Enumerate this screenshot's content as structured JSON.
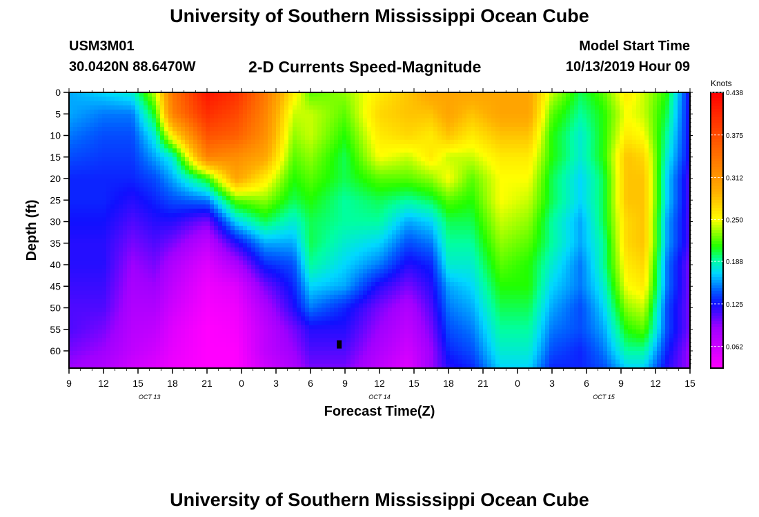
{
  "page": {
    "title_top": "University of Southern Mississippi Ocean Cube",
    "title_bottom": "University of Southern Mississippi Ocean Cube",
    "station_id": "USM3M01",
    "station_coords": "30.0420N 88.6470W",
    "subtitle": "2-D Currents Speed-Magnitude",
    "model_start_label": "Model Start Time",
    "model_start_value": "10/13/2019 Hour 09"
  },
  "chart_data": {
    "type": "heatmap",
    "title": "2-D Currents Speed-Magnitude",
    "xlabel": "Forecast Time(Z)",
    "ylabel": "Depth (ft)",
    "x_tick_labels": [
      "9",
      "12",
      "15",
      "18",
      "21",
      "0",
      "3",
      "6",
      "9",
      "12",
      "15",
      "18",
      "21",
      "0",
      "3",
      "6",
      "9",
      "12",
      "15"
    ],
    "x_hours": [
      0,
      3,
      6,
      9,
      12,
      15,
      18,
      21,
      24,
      27,
      30,
      33,
      36,
      39,
      42,
      45,
      48,
      51,
      54
    ],
    "x_range_hours": [
      0,
      54
    ],
    "date_labels": [
      {
        "text": "OCT 13",
        "hour": 7
      },
      {
        "text": "OCT 14",
        "hour": 27
      },
      {
        "text": "OCT 15",
        "hour": 46.5
      }
    ],
    "y_ticks": [
      0,
      5,
      10,
      15,
      20,
      25,
      30,
      35,
      40,
      45,
      50,
      55,
      60
    ],
    "y_range_ft": [
      0,
      64
    ],
    "colorbar": {
      "title": "Knots",
      "tick_labels": [
        "0.438",
        "0.375",
        "0.312",
        "0.250",
        "0.188",
        "0.125",
        "0.062"
      ],
      "tick_values": [
        0.438,
        0.375,
        0.312,
        0.25,
        0.188,
        0.125,
        0.062
      ],
      "range": [
        0.03,
        0.438
      ],
      "color_stops": [
        {
          "v": 0.03,
          "c": "#ff00ff"
        },
        {
          "v": 0.09,
          "c": "#a000ff"
        },
        {
          "v": 0.125,
          "c": "#1010ff"
        },
        {
          "v": 0.145,
          "c": "#0060ff"
        },
        {
          "v": 0.17,
          "c": "#00d8ff"
        },
        {
          "v": 0.19,
          "c": "#00ffa0"
        },
        {
          "v": 0.21,
          "c": "#20ff00"
        },
        {
          "v": 0.25,
          "c": "#ffff00"
        },
        {
          "v": 0.29,
          "c": "#ffb000"
        },
        {
          "v": 0.35,
          "c": "#ff6a00"
        },
        {
          "v": 0.438,
          "c": "#ff0000"
        }
      ]
    },
    "marker": {
      "hour": 23.5,
      "depth_ft": 58.5
    },
    "profiles": [
      {
        "hour": 0,
        "speed": [
          0.16,
          0.16,
          0.15,
          0.14,
          0.13,
          0.13,
          0.125,
          0.12,
          0.12,
          0.115,
          0.11,
          0.11,
          0.1,
          0.09
        ]
      },
      {
        "hour": 3,
        "speed": [
          0.17,
          0.15,
          0.14,
          0.135,
          0.13,
          0.13,
          0.125,
          0.12,
          0.12,
          0.115,
          0.11,
          0.1,
          0.09,
          0.08
        ]
      },
      {
        "hour": 5.5,
        "speed": [
          0.18,
          0.15,
          0.14,
          0.135,
          0.13,
          0.12,
          0.11,
          0.1,
          0.09,
          0.085,
          0.08,
          0.075,
          0.07,
          0.06
        ]
      },
      {
        "hour": 7.5,
        "speed": [
          0.24,
          0.21,
          0.18,
          0.16,
          0.14,
          0.13,
          0.12,
          0.11,
          0.1,
          0.09,
          0.08,
          0.07,
          0.06,
          0.05
        ]
      },
      {
        "hour": 9,
        "speed": [
          0.34,
          0.33,
          0.26,
          0.18,
          0.16,
          0.14,
          0.12,
          0.1,
          0.08,
          0.07,
          0.06,
          0.05,
          0.045,
          0.04
        ]
      },
      {
        "hour": 12,
        "speed": [
          0.42,
          0.4,
          0.37,
          0.33,
          0.21,
          0.15,
          0.1,
          0.07,
          0.05,
          0.04,
          0.035,
          0.03,
          0.03,
          0.03
        ]
      },
      {
        "hour": 14.5,
        "speed": [
          0.4,
          0.38,
          0.36,
          0.32,
          0.3,
          0.22,
          0.17,
          0.12,
          0.08,
          0.05,
          0.04,
          0.035,
          0.03,
          0.03
        ]
      },
      {
        "hour": 17,
        "speed": [
          0.34,
          0.33,
          0.32,
          0.3,
          0.26,
          0.23,
          0.2,
          0.16,
          0.13,
          0.1,
          0.08,
          0.07,
          0.07,
          0.06
        ]
      },
      {
        "hour": 19.5,
        "speed": [
          0.26,
          0.24,
          0.23,
          0.22,
          0.21,
          0.2,
          0.18,
          0.16,
          0.14,
          0.13,
          0.12,
          0.1,
          0.09,
          0.08
        ]
      },
      {
        "hour": 21,
        "speed": [
          0.22,
          0.24,
          0.24,
          0.23,
          0.22,
          0.21,
          0.2,
          0.2,
          0.19,
          0.17,
          0.15,
          0.12,
          0.11,
          0.1
        ]
      },
      {
        "hour": 24,
        "speed": [
          0.23,
          0.22,
          0.21,
          0.2,
          0.2,
          0.19,
          0.19,
          0.18,
          0.17,
          0.16,
          0.13,
          0.12,
          0.11,
          0.1
        ]
      },
      {
        "hour": 27,
        "speed": [
          0.26,
          0.27,
          0.26,
          0.25,
          0.22,
          0.2,
          0.19,
          0.17,
          0.15,
          0.12,
          0.1,
          0.09,
          0.08,
          0.07
        ]
      },
      {
        "hour": 29.5,
        "speed": [
          0.28,
          0.28,
          0.27,
          0.24,
          0.22,
          0.19,
          0.16,
          0.14,
          0.12,
          0.1,
          0.08,
          0.07,
          0.06,
          0.05
        ]
      },
      {
        "hour": 31.5,
        "speed": [
          0.3,
          0.28,
          0.26,
          0.26,
          0.23,
          0.2,
          0.17,
          0.15,
          0.13,
          0.12,
          0.11,
          0.1,
          0.09,
          0.09
        ]
      },
      {
        "hour": 33,
        "speed": [
          0.3,
          0.3,
          0.28,
          0.24,
          0.25,
          0.22,
          0.2,
          0.19,
          0.18,
          0.16,
          0.15,
          0.14,
          0.13,
          0.12
        ]
      },
      {
        "hour": 35,
        "speed": [
          0.3,
          0.28,
          0.26,
          0.24,
          0.22,
          0.21,
          0.2,
          0.19,
          0.18,
          0.17,
          0.16,
          0.15,
          0.14,
          0.13
        ]
      },
      {
        "hour": 37.5,
        "speed": [
          0.3,
          0.3,
          0.28,
          0.26,
          0.25,
          0.25,
          0.24,
          0.23,
          0.22,
          0.21,
          0.2,
          0.19,
          0.18,
          0.17
        ]
      },
      {
        "hour": 40,
        "speed": [
          0.3,
          0.3,
          0.28,
          0.26,
          0.25,
          0.24,
          0.23,
          0.22,
          0.21,
          0.21,
          0.2,
          0.19,
          0.18,
          0.17
        ]
      },
      {
        "hour": 42,
        "speed": [
          0.24,
          0.22,
          0.21,
          0.21,
          0.2,
          0.2,
          0.19,
          0.19,
          0.18,
          0.17,
          0.16,
          0.15,
          0.14,
          0.13
        ]
      },
      {
        "hour": 44.5,
        "speed": [
          0.2,
          0.19,
          0.18,
          0.18,
          0.17,
          0.17,
          0.16,
          0.16,
          0.15,
          0.15,
          0.14,
          0.14,
          0.13,
          0.13
        ]
      },
      {
        "hour": 46.5,
        "speed": [
          0.22,
          0.21,
          0.21,
          0.21,
          0.2,
          0.2,
          0.2,
          0.19,
          0.19,
          0.18,
          0.17,
          0.16,
          0.15,
          0.14
        ]
      },
      {
        "hour": 48.5,
        "speed": [
          0.26,
          0.25,
          0.26,
          0.28,
          0.28,
          0.28,
          0.27,
          0.27,
          0.26,
          0.25,
          0.23,
          0.21,
          0.19,
          0.17
        ]
      },
      {
        "hour": 50,
        "speed": [
          0.24,
          0.24,
          0.25,
          0.27,
          0.28,
          0.28,
          0.28,
          0.28,
          0.27,
          0.26,
          0.24,
          0.22,
          0.19,
          0.17
        ]
      },
      {
        "hour": 52,
        "speed": [
          0.21,
          0.2,
          0.19,
          0.18,
          0.17,
          0.17,
          0.16,
          0.16,
          0.15,
          0.15,
          0.14,
          0.14,
          0.13,
          0.12
        ]
      },
      {
        "hour": 54,
        "speed": [
          0.12,
          0.12,
          0.12,
          0.12,
          0.11,
          0.11,
          0.11,
          0.11,
          0.1,
          0.1,
          0.1,
          0.1,
          0.09,
          0.09
        ]
      }
    ],
    "profile_depths_ft": [
      0,
      5,
      10,
      15,
      20,
      25,
      30,
      35,
      40,
      45,
      50,
      55,
      60,
      64
    ]
  }
}
